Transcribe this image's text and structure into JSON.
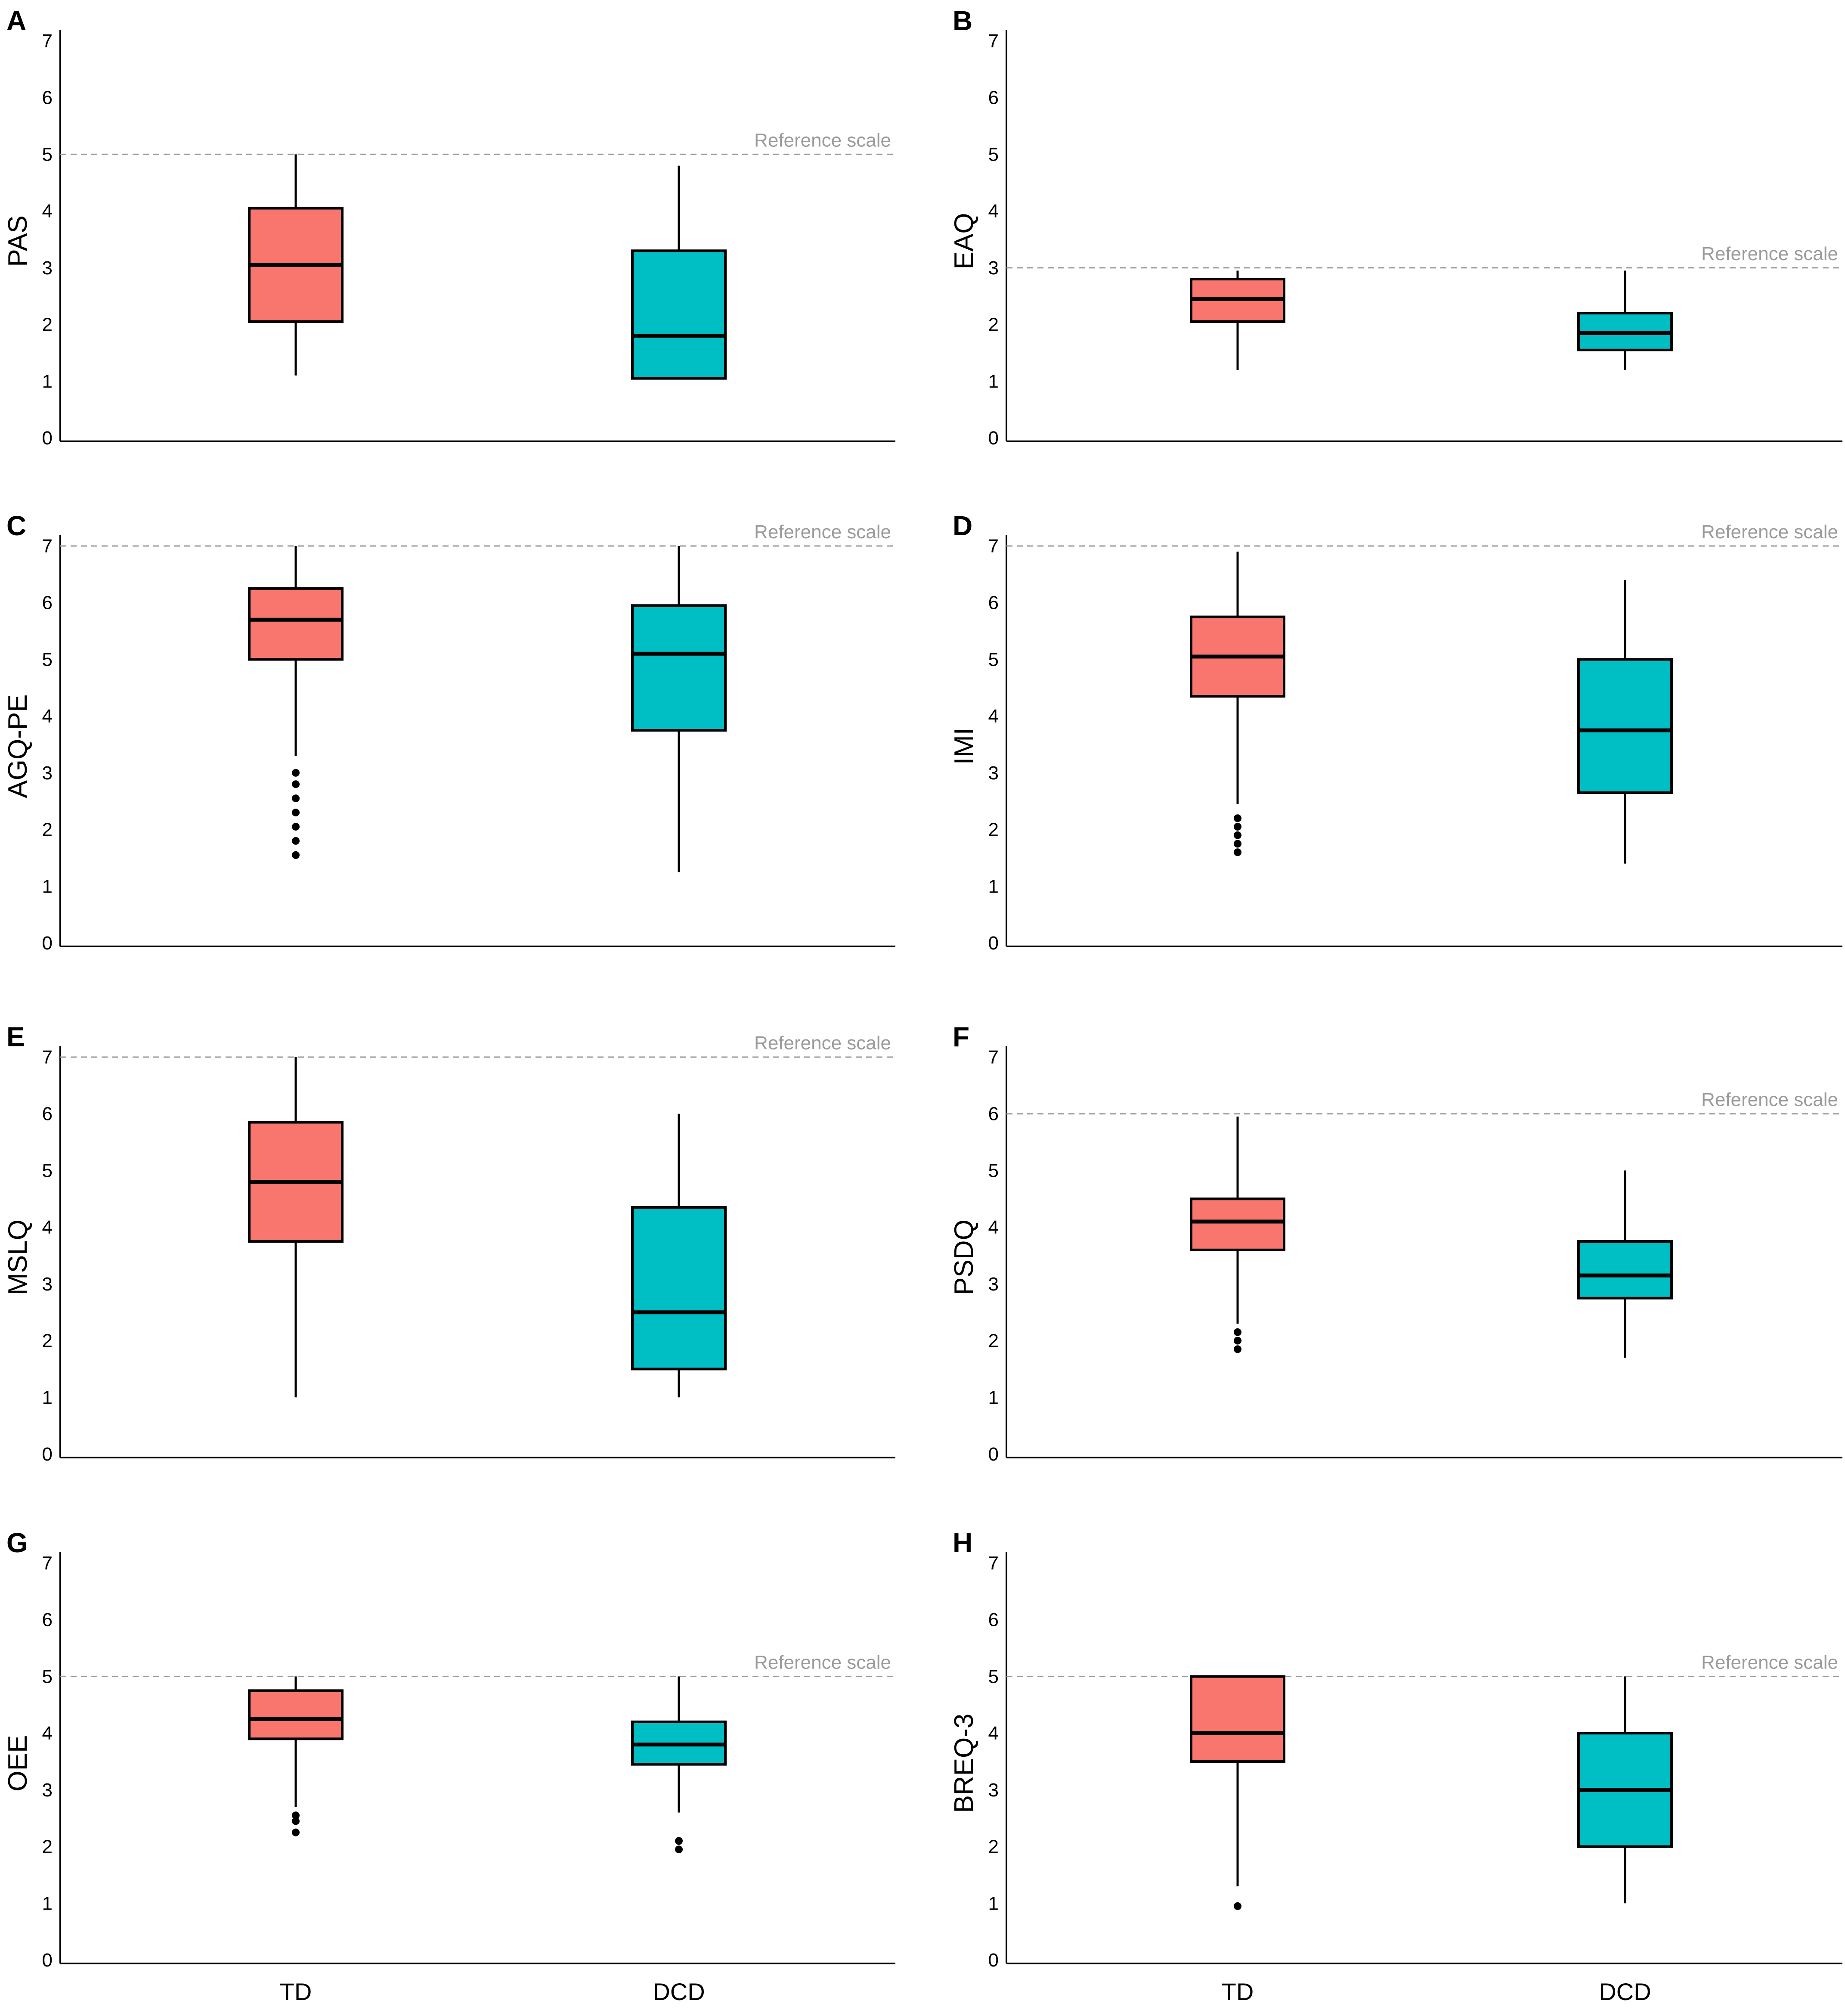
{
  "categories": [
    "TD",
    "DCD"
  ],
  "colors": {
    "TD": "#f8766d",
    "DCD": "#00bfc4",
    "reference": "#9a9a9a"
  },
  "chart_data": [
    {
      "type": "boxplot",
      "panel": "A",
      "ylabel": "PAS",
      "ylim": [
        0,
        7
      ],
      "yticks": [
        "0",
        "1",
        "2",
        "3",
        "4",
        "5",
        "6",
        "7"
      ],
      "reference": {
        "label": "Reference scale",
        "value": 5
      },
      "series": [
        {
          "name": "TD",
          "whisker_low": 1.1,
          "q1": 2.05,
          "median": 3.05,
          "q3": 4.05,
          "whisker_high": 5.0,
          "outliers": []
        },
        {
          "name": "DCD",
          "whisker_low": 1.05,
          "q1": 1.05,
          "median": 1.8,
          "q3": 3.3,
          "whisker_high": 4.8,
          "outliers": []
        }
      ]
    },
    {
      "type": "boxplot",
      "panel": "B",
      "ylabel": "EAQ",
      "ylim": [
        0,
        7
      ],
      "yticks": [
        "0",
        "1",
        "2",
        "3",
        "4",
        "5",
        "6",
        "7"
      ],
      "reference": {
        "label": "Reference scale",
        "value": 3
      },
      "series": [
        {
          "name": "TD",
          "whisker_low": 1.2,
          "q1": 2.05,
          "median": 2.45,
          "q3": 2.8,
          "whisker_high": 2.95,
          "outliers": []
        },
        {
          "name": "DCD",
          "whisker_low": 1.2,
          "q1": 1.55,
          "median": 1.85,
          "q3": 2.2,
          "whisker_high": 2.95,
          "outliers": []
        }
      ]
    },
    {
      "type": "boxplot",
      "panel": "C",
      "ylabel": "AGQ-PE",
      "ylim": [
        0,
        7
      ],
      "yticks": [
        "0",
        "1",
        "2",
        "3",
        "4",
        "5",
        "6",
        "7"
      ],
      "reference": {
        "label": "Reference scale",
        "value": 7
      },
      "series": [
        {
          "name": "TD",
          "whisker_low": 3.3,
          "q1": 5.0,
          "median": 5.7,
          "q3": 6.25,
          "whisker_high": 7.0,
          "outliers": [
            1.55,
            1.8,
            2.05,
            2.3,
            2.55,
            2.8,
            3.0
          ]
        },
        {
          "name": "DCD",
          "whisker_low": 1.25,
          "q1": 3.75,
          "median": 5.1,
          "q3": 5.95,
          "whisker_high": 7.0,
          "outliers": []
        }
      ]
    },
    {
      "type": "boxplot",
      "panel": "D",
      "ylabel": "IMI",
      "ylim": [
        0,
        7
      ],
      "yticks": [
        "0",
        "1",
        "2",
        "3",
        "4",
        "5",
        "6",
        "7"
      ],
      "reference": {
        "label": "Reference scale",
        "value": 7
      },
      "series": [
        {
          "name": "TD",
          "whisker_low": 2.45,
          "q1": 4.35,
          "median": 5.05,
          "q3": 5.75,
          "whisker_high": 6.9,
          "outliers": [
            1.6,
            1.75,
            1.9,
            2.05,
            2.2
          ]
        },
        {
          "name": "DCD",
          "whisker_low": 1.4,
          "q1": 2.65,
          "median": 3.75,
          "q3": 5.0,
          "whisker_high": 6.4,
          "outliers": []
        }
      ]
    },
    {
      "type": "boxplot",
      "panel": "E",
      "ylabel": "MSLQ",
      "ylim": [
        0,
        7
      ],
      "yticks": [
        "0",
        "1",
        "2",
        "3",
        "4",
        "5",
        "6",
        "7"
      ],
      "reference": {
        "label": "Reference scale",
        "value": 7
      },
      "series": [
        {
          "name": "TD",
          "whisker_low": 1.0,
          "q1": 3.75,
          "median": 4.8,
          "q3": 5.85,
          "whisker_high": 7.0,
          "outliers": []
        },
        {
          "name": "DCD",
          "whisker_low": 1.0,
          "q1": 1.5,
          "median": 2.5,
          "q3": 4.35,
          "whisker_high": 6.0,
          "outliers": []
        }
      ]
    },
    {
      "type": "boxplot",
      "panel": "F",
      "ylabel": "PSDQ",
      "ylim": [
        0,
        7
      ],
      "yticks": [
        "0",
        "1",
        "2",
        "3",
        "4",
        "5",
        "6",
        "7"
      ],
      "reference": {
        "label": "Reference scale",
        "value": 6
      },
      "series": [
        {
          "name": "TD",
          "whisker_low": 2.3,
          "q1": 3.6,
          "median": 4.1,
          "q3": 4.5,
          "whisker_high": 5.95,
          "outliers": [
            1.85,
            2.0,
            2.15
          ]
        },
        {
          "name": "DCD",
          "whisker_low": 1.7,
          "q1": 2.75,
          "median": 3.15,
          "q3": 3.75,
          "whisker_high": 5.0,
          "outliers": []
        }
      ]
    },
    {
      "type": "boxplot",
      "panel": "G",
      "ylabel": "OEE",
      "ylim": [
        0,
        7
      ],
      "yticks": [
        "0",
        "1",
        "2",
        "3",
        "4",
        "5",
        "6",
        "7"
      ],
      "reference": {
        "label": "Reference scale",
        "value": 5
      },
      "series": [
        {
          "name": "TD",
          "whisker_low": 2.7,
          "q1": 3.9,
          "median": 4.25,
          "q3": 4.75,
          "whisker_high": 5.0,
          "outliers": [
            2.25,
            2.45,
            2.55
          ]
        },
        {
          "name": "DCD",
          "whisker_low": 2.6,
          "q1": 3.45,
          "median": 3.8,
          "q3": 4.2,
          "whisker_high": 5.0,
          "outliers": [
            1.95,
            2.1
          ]
        }
      ]
    },
    {
      "type": "boxplot",
      "panel": "H",
      "ylabel": "BREQ-3",
      "ylim": [
        0,
        7
      ],
      "yticks": [
        "0",
        "1",
        "2",
        "3",
        "4",
        "5",
        "6",
        "7"
      ],
      "reference": {
        "label": "Reference scale",
        "value": 5
      },
      "series": [
        {
          "name": "TD",
          "whisker_low": 1.3,
          "q1": 3.5,
          "median": 4.0,
          "q3": 5.0,
          "whisker_high": 5.0,
          "outliers": [
            0.95
          ]
        },
        {
          "name": "DCD",
          "whisker_low": 1.0,
          "q1": 2.0,
          "median": 3.0,
          "q3": 4.0,
          "whisker_high": 5.0,
          "outliers": []
        }
      ]
    }
  ]
}
